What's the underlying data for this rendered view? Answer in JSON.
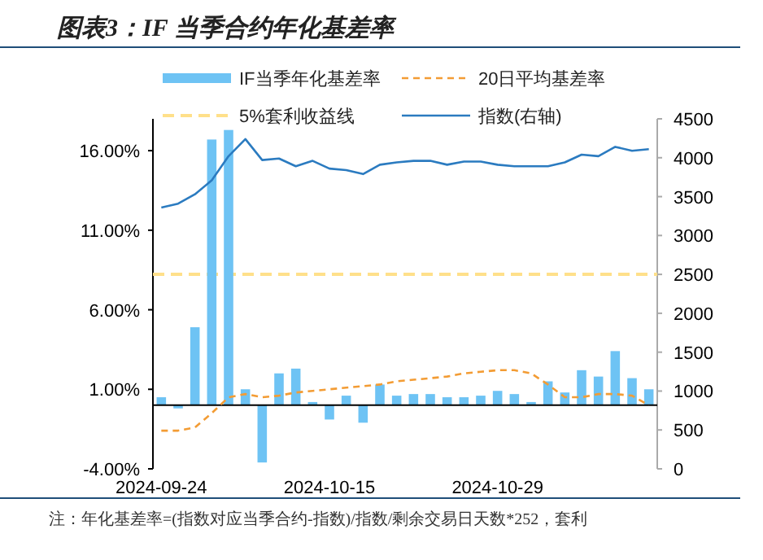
{
  "chart_data": {
    "type": "bar",
    "title": "图表3：IF 当季合约年化基差率",
    "categories": [
      "2024-09-24",
      null,
      null,
      null,
      null,
      null,
      null,
      null,
      null,
      null,
      "2024-10-15",
      null,
      null,
      null,
      null,
      null,
      null,
      null,
      null,
      null,
      "2024-10-29",
      null,
      null,
      null,
      null,
      null,
      null,
      null,
      null,
      null
    ],
    "series": [
      {
        "name": "IF当季年化基差率",
        "color": "#6ec3f4",
        "values": [
          0.5,
          -0.2,
          4.9,
          16.7,
          17.3,
          1.0,
          -3.6,
          2.0,
          2.3,
          0.2,
          -0.9,
          0.6,
          -1.1,
          1.3,
          0.6,
          0.7,
          0.7,
          0.5,
          0.5,
          0.6,
          0.9,
          0.7,
          0.2,
          1.5,
          0.8,
          2.2,
          1.8,
          3.4,
          1.7,
          1.0
        ]
      },
      {
        "name": "20日平均基差率",
        "type": "line",
        "color": "#f39c34",
        "line_style": "dashed",
        "values": [
          -1.6,
          -1.6,
          -1.4,
          -0.5,
          0.5,
          0.7,
          0.5,
          0.6,
          0.8,
          0.9,
          1.0,
          1.1,
          1.2,
          1.3,
          1.5,
          1.6,
          1.7,
          1.8,
          2.0,
          2.1,
          2.2,
          2.2,
          2.0,
          1.3,
          0.5,
          0.5,
          0.7,
          0.7,
          0.6,
          0.0
        ]
      },
      {
        "name": "指数(右轴)",
        "type": "line",
        "axis": "y2",
        "color": "#2b7bc0",
        "line_style": "solid",
        "values": [
          3360,
          3410,
          3530,
          3710,
          4020,
          4240,
          3970,
          3990,
          3890,
          3960,
          3860,
          3840,
          3790,
          3910,
          3940,
          3960,
          3960,
          3910,
          3950,
          3950,
          3910,
          3890,
          3890,
          3890,
          3940,
          4040,
          4020,
          4140,
          4090,
          4110
        ]
      }
    ],
    "ref_lines": [
      {
        "axis": "y2",
        "value": 2500,
        "label": "5%套利收益线",
        "color": "#ffe08a",
        "line_style": "dashed"
      }
    ],
    "ylim": [
      -4,
      18
    ],
    "yticks": [
      {
        "value": -4,
        "label": "-4.00%"
      },
      {
        "value": 1,
        "label": "1.00%"
      },
      {
        "value": 6,
        "label": "6.00%"
      },
      {
        "value": 11,
        "label": "11.00%"
      },
      {
        "value": 16,
        "label": "16.00%"
      }
    ],
    "y2lim": [
      0,
      4500
    ],
    "y2ticks": [
      0,
      500,
      1000,
      1500,
      2000,
      2500,
      3000,
      3500,
      4000,
      4500
    ],
    "legend": "top",
    "annotations": [
      "注：年化基差率=(指数对应当季合约-指数)/指数/剩余交易日天数*252，套利"
    ]
  }
}
